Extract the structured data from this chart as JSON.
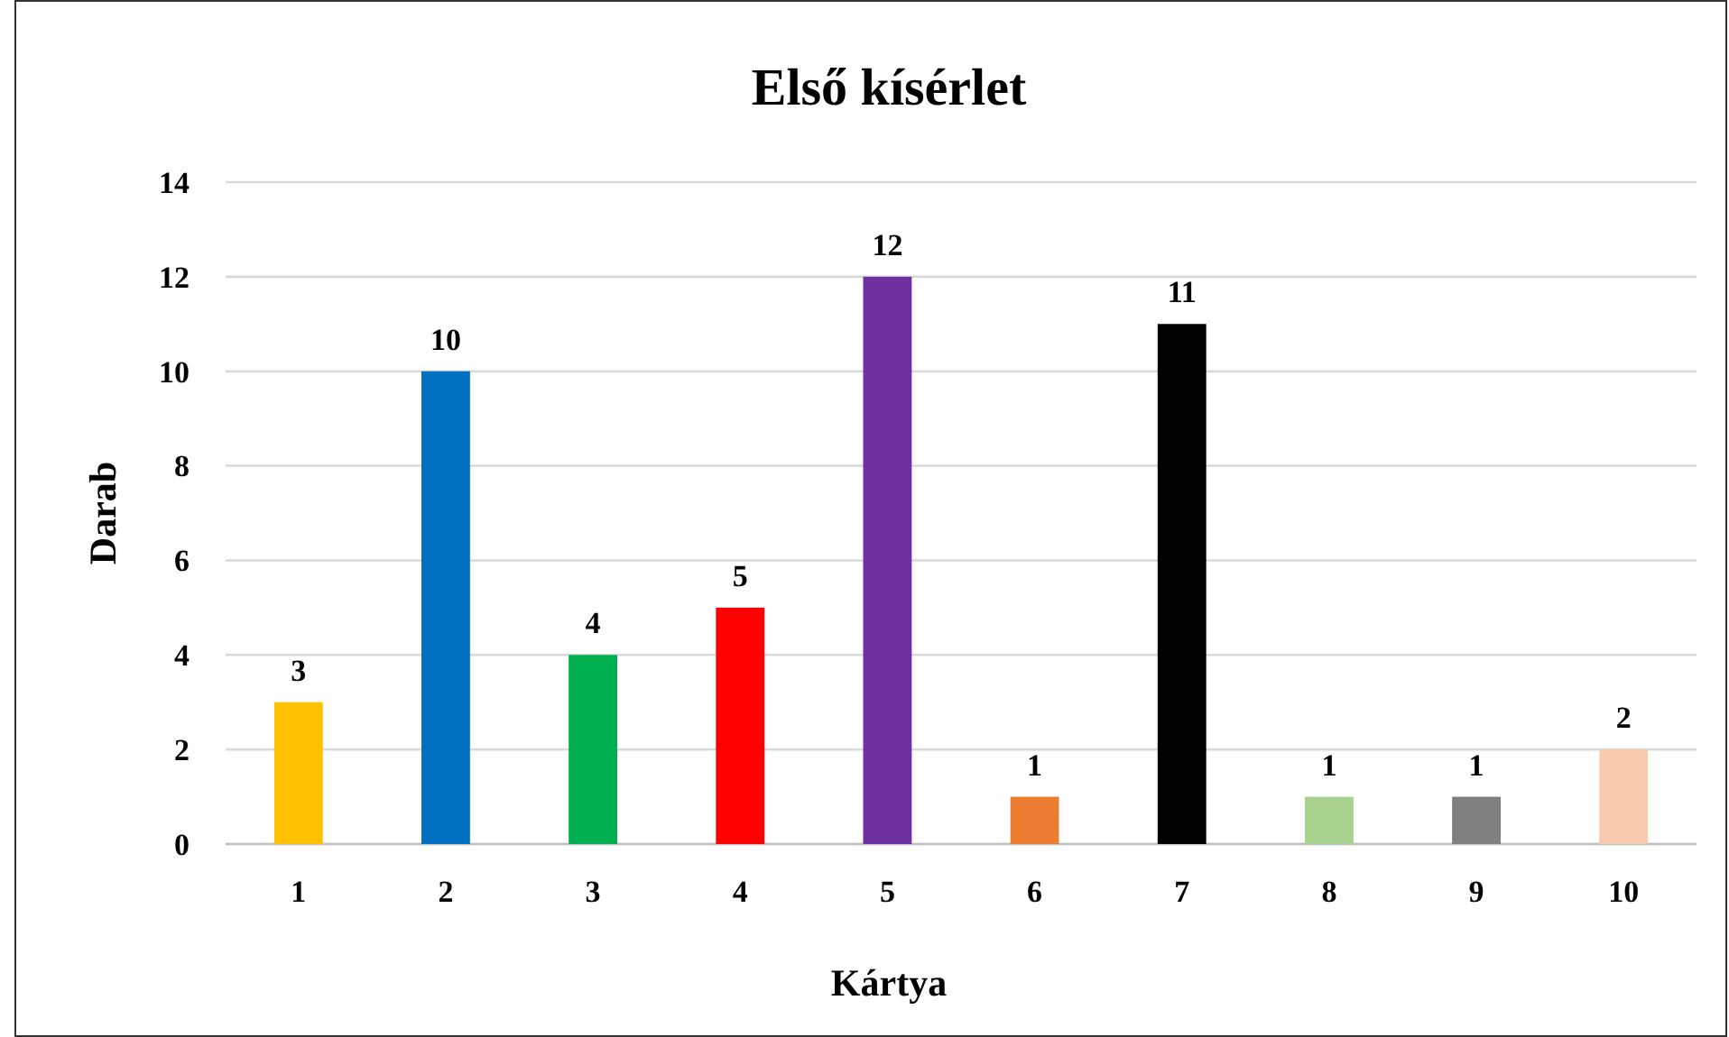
{
  "chart_data": {
    "type": "bar",
    "title": "Első kísérlet",
    "xlabel": "Kártya",
    "ylabel": "Darab",
    "categories": [
      "1",
      "2",
      "3",
      "4",
      "5",
      "6",
      "7",
      "8",
      "9",
      "10"
    ],
    "values": [
      3,
      10,
      4,
      5,
      12,
      1,
      11,
      1,
      1,
      2
    ],
    "colors": [
      "#ffc000",
      "#0070c0",
      "#00b050",
      "#ff0000",
      "#7030a0",
      "#ed7d31",
      "#000000",
      "#a9d18e",
      "#7f7f7f",
      "#f8cbad"
    ],
    "ylim": [
      0,
      14
    ],
    "yticks": [
      0,
      2,
      4,
      6,
      8,
      10,
      12,
      14
    ],
    "grid": "y",
    "data_labels": true
  }
}
